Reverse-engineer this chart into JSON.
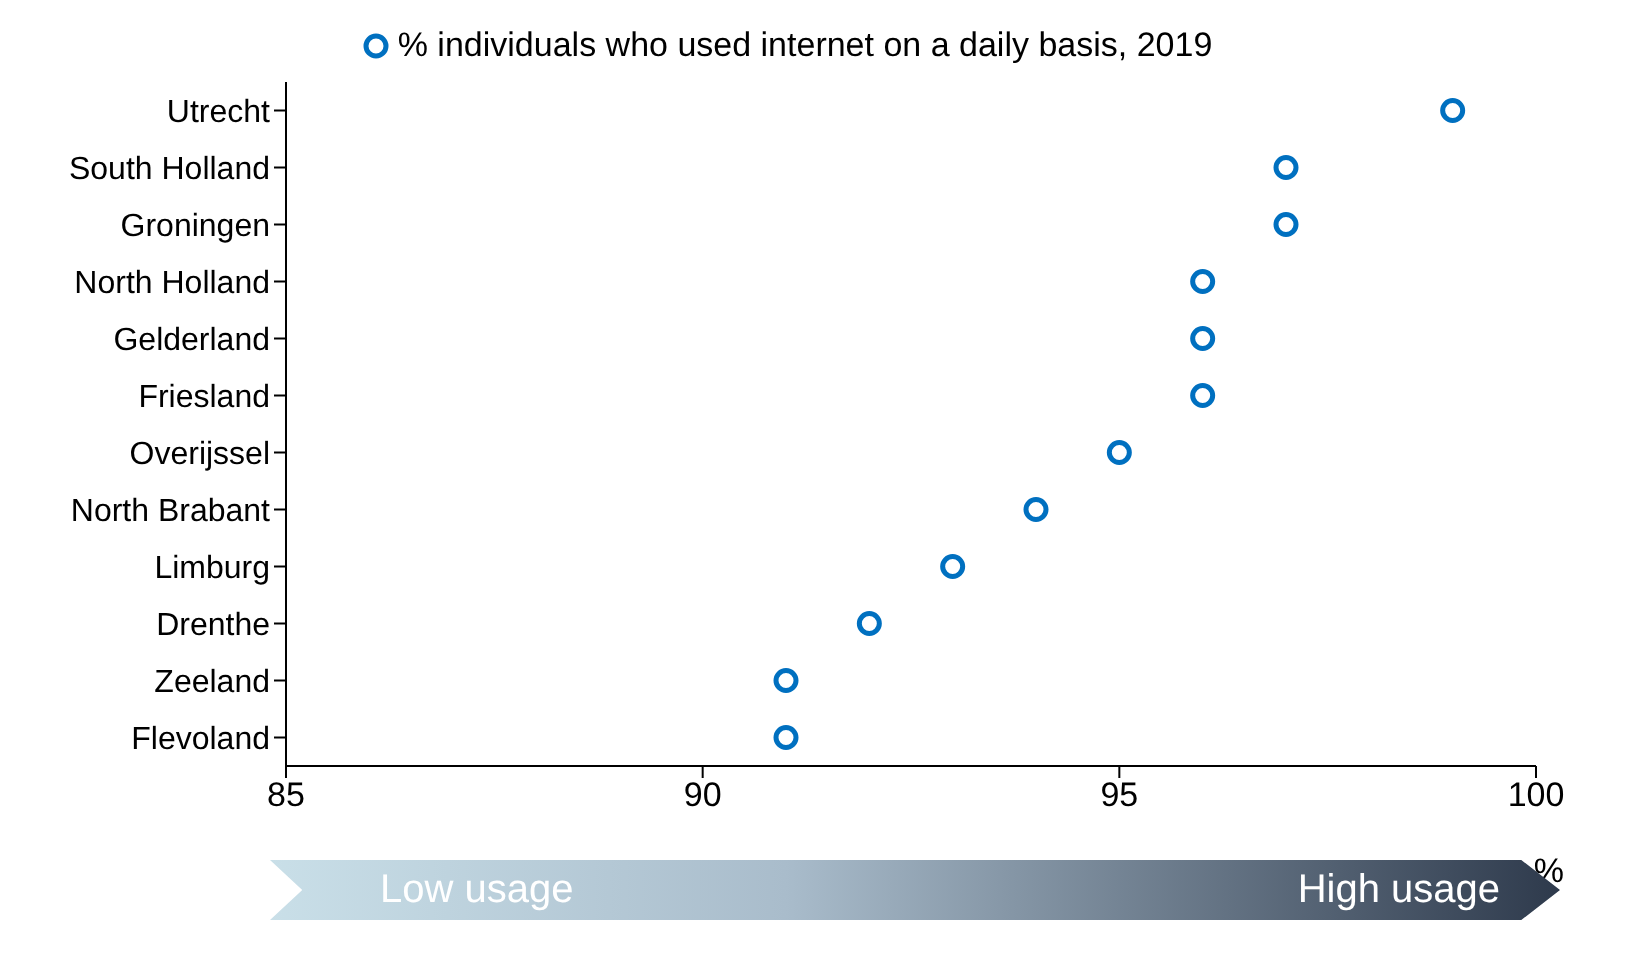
{
  "chart_data": {
    "type": "scatter",
    "orientation": "horizontal",
    "categories": [
      "Utrecht",
      "South Holland",
      "Groningen",
      "North Holland",
      "Gelderland",
      "Friesland",
      "Overijssel",
      "North Brabant",
      "Limburg",
      "Drenthe",
      "Zeeland",
      "Flevoland"
    ],
    "series": [
      {
        "name": "% individuals who used internet on a daily basis, 2019",
        "color": "#0070c0",
        "values": [
          99,
          97,
          97,
          96,
          96,
          96,
          95,
          94,
          93,
          92,
          91,
          91
        ]
      }
    ],
    "xlabel": "%",
    "xlim": [
      85,
      100
    ],
    "xticks": [
      85,
      90,
      95,
      100
    ],
    "annotations": [
      "Low usage",
      "High usage"
    ],
    "marker": "circle",
    "grid": false,
    "legend": "top"
  }
}
